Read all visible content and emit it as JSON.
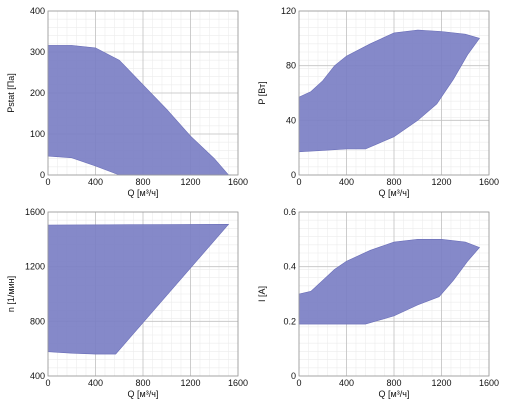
{
  "chart_data": [
    {
      "type": "area",
      "xlabel": "Q [м³/ч]",
      "ylabel": "Pstat [Па]",
      "xlim": [
        0,
        1600
      ],
      "ylim": [
        0,
        400
      ],
      "xticks": [
        0,
        400,
        800,
        1200,
        1600
      ],
      "yticks": [
        0,
        100,
        200,
        300,
        400
      ],
      "grid": true,
      "fill_color": "#7b7fc4",
      "upper": [
        [
          0,
          316
        ],
        [
          200,
          316
        ],
        [
          400,
          310
        ],
        [
          600,
          280
        ],
        [
          800,
          220
        ],
        [
          1000,
          160
        ],
        [
          1200,
          95
        ],
        [
          1400,
          40
        ],
        [
          1520,
          0
        ]
      ],
      "lower": [
        [
          0,
          46
        ],
        [
          200,
          42
        ],
        [
          400,
          22
        ],
        [
          600,
          0
        ],
        [
          1540,
          0
        ]
      ]
    },
    {
      "type": "area",
      "xlabel": "Q [м³/ч]",
      "ylabel": "P [Вт]",
      "xlim": [
        0,
        1600
      ],
      "ylim": [
        0,
        120
      ],
      "xticks": [
        0,
        400,
        800,
        1200,
        1600
      ],
      "yticks": [
        0,
        40,
        80,
        120
      ],
      "grid": true,
      "fill_color": "#7b7fc4",
      "upper": [
        [
          0,
          57
        ],
        [
          100,
          61
        ],
        [
          200,
          69
        ],
        [
          300,
          80
        ],
        [
          400,
          87
        ],
        [
          600,
          96
        ],
        [
          800,
          104
        ],
        [
          1000,
          106
        ],
        [
          1200,
          105
        ],
        [
          1400,
          103
        ],
        [
          1520,
          100
        ]
      ],
      "lower": [
        [
          0,
          17
        ],
        [
          200,
          18
        ],
        [
          400,
          19
        ],
        [
          560,
          19
        ],
        [
          800,
          28
        ],
        [
          1000,
          40
        ],
        [
          1160,
          52
        ],
        [
          1300,
          70
        ],
        [
          1420,
          88
        ],
        [
          1520,
          100
        ]
      ]
    },
    {
      "type": "area",
      "xlabel": "Q [м³/ч]",
      "ylabel": "n [1/мин]",
      "xlim": [
        0,
        1600
      ],
      "ylim": [
        400,
        1600
      ],
      "xticks": [
        0,
        400,
        800,
        1200,
        1600
      ],
      "yticks": [
        400,
        800,
        1200,
        1600
      ],
      "grid": true,
      "fill_color": "#7b7fc4",
      "upper": [
        [
          0,
          1505
        ],
        [
          500,
          1506
        ],
        [
          1000,
          1508
        ],
        [
          1520,
          1510
        ]
      ],
      "lower": [
        [
          0,
          578
        ],
        [
          200,
          567
        ],
        [
          400,
          560
        ],
        [
          570,
          560
        ],
        [
          1520,
          1510
        ]
      ]
    },
    {
      "type": "area",
      "xlabel": "Q [м³/ч]",
      "ylabel": "I [A]",
      "xlim": [
        0,
        1600
      ],
      "ylim": [
        0,
        0.6
      ],
      "xticks": [
        0,
        400,
        800,
        1200,
        1600
      ],
      "yticks": [
        0,
        0.2,
        0.4,
        0.6
      ],
      "grid": true,
      "fill_color": "#7b7fc4",
      "upper": [
        [
          0,
          0.3
        ],
        [
          100,
          0.31
        ],
        [
          200,
          0.35
        ],
        [
          300,
          0.39
        ],
        [
          400,
          0.42
        ],
        [
          600,
          0.46
        ],
        [
          800,
          0.49
        ],
        [
          1000,
          0.5
        ],
        [
          1200,
          0.5
        ],
        [
          1400,
          0.49
        ],
        [
          1520,
          0.47
        ]
      ],
      "lower": [
        [
          0,
          0.19
        ],
        [
          200,
          0.19
        ],
        [
          400,
          0.19
        ],
        [
          560,
          0.19
        ],
        [
          800,
          0.22
        ],
        [
          1000,
          0.26
        ],
        [
          1180,
          0.29
        ],
        [
          1300,
          0.35
        ],
        [
          1420,
          0.42
        ],
        [
          1520,
          0.47
        ]
      ]
    }
  ]
}
